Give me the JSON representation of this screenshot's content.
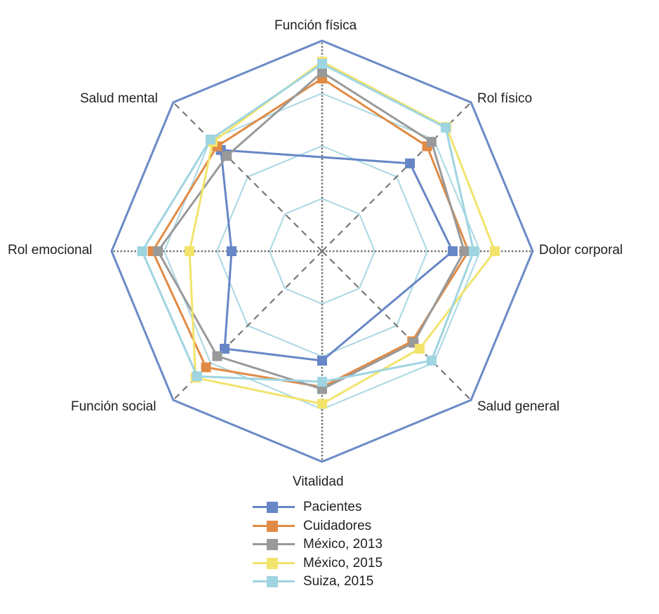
{
  "chart_data": {
    "type": "radar",
    "title": "",
    "axes": [
      "Función física",
      "Rol físico",
      "Dolor corporal",
      "Salud general",
      "Vitalidad",
      "Función social",
      "Rol emocional",
      "Salud mental"
    ],
    "range": [
      0,
      100
    ],
    "grid_levels": [
      25,
      50,
      75
    ],
    "grid_color": "#A9D8E4",
    "frame_color": "#6A8AC8",
    "series": [
      {
        "name": "Pacientes",
        "color": "#6686C6",
        "values": [
          null,
          59,
          62,
          null,
          52,
          65.5,
          43,
          68
        ]
      },
      {
        "name": "Cuidadores",
        "color": "#E08B45",
        "values": [
          82,
          70.5,
          69.5,
          60.5,
          64.5,
          78,
          80.5,
          70.5
        ]
      },
      {
        "name": "México, 2013",
        "color": "#999999",
        "values": [
          85,
          73.5,
          67.5,
          61.5,
          65.5,
          70.5,
          78,
          64
        ]
      },
      {
        "name": "México, 2015",
        "color": "#F2E36B",
        "values": [
          90,
          83.5,
          82,
          65.5,
          72.5,
          85,
          63,
          73.5
        ]
      },
      {
        "name": "Suiza, 2015",
        "color": "#9FD4E1",
        "values": [
          89,
          83,
          72,
          73.5,
          62,
          84,
          85.5,
          75
        ]
      }
    ],
    "legend_position": "bottom"
  },
  "labels": {
    "axis_0": "Función física",
    "axis_1": "Rol físico",
    "axis_2": "Dolor corporal",
    "axis_3": "Salud general",
    "axis_4": "Vitalidad",
    "axis_5": "Función social",
    "axis_6": "Rol emocional",
    "axis_7": "Salud mental"
  },
  "legend": [
    {
      "label": "Pacientes",
      "color": "#6686C6"
    },
    {
      "label": "Cuidadores",
      "color": "#E08B45"
    },
    {
      "label": "México, 2013",
      "color": "#999999"
    },
    {
      "label": "México, 2015",
      "color": "#F2E36B"
    },
    {
      "label": "Suiza, 2015",
      "color": "#9FD4E1"
    }
  ]
}
